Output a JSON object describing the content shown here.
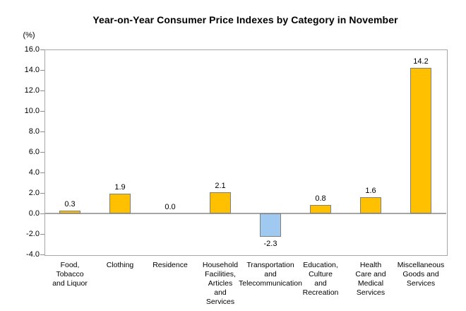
{
  "title": "Year-on-Year Consumer Price Indexes by Category in November",
  "axis_unit_label": "(%)",
  "chart_data": {
    "type": "bar",
    "title": "Year-on-Year Consumer Price Indexes by Category in November",
    "xlabel": "",
    "ylabel": "(%)",
    "categories": [
      "Food,\nTobacco\nand Liquor",
      "Clothing",
      "Residence",
      "Household\nFacilities,\nArticles\nand\nServices",
      "Transportation\nand\nTelecommunication",
      "Education,\nCulture\nand\nRecreation",
      "Health\nCare and\nMedical\nServices",
      "Miscellaneous\nGoods and\nServices"
    ],
    "values": [
      0.3,
      1.9,
      0.0,
      2.1,
      -2.3,
      0.8,
      1.6,
      14.2
    ],
    "value_labels": [
      "0.3",
      "1.9",
      "0.0",
      "2.1",
      "-2.3",
      "0.8",
      "1.6",
      "14.2"
    ],
    "ylim": [
      -4.0,
      16.0
    ],
    "ytick_interval": 2.0,
    "ytick_labels": [
      "16.0",
      "14.0",
      "12.0",
      "10.0",
      "8.0",
      "6.0",
      "4.0",
      "2.0",
      "0.0",
      "-2.0",
      "-4.0"
    ],
    "grid": false,
    "legend": null,
    "colors": {
      "positive_bar": "#FFC000",
      "negative_bar": "#9FC9F0",
      "bar_border": "#7F7F7F",
      "axis_line": "#A6A6A6",
      "text": "#000000"
    }
  }
}
